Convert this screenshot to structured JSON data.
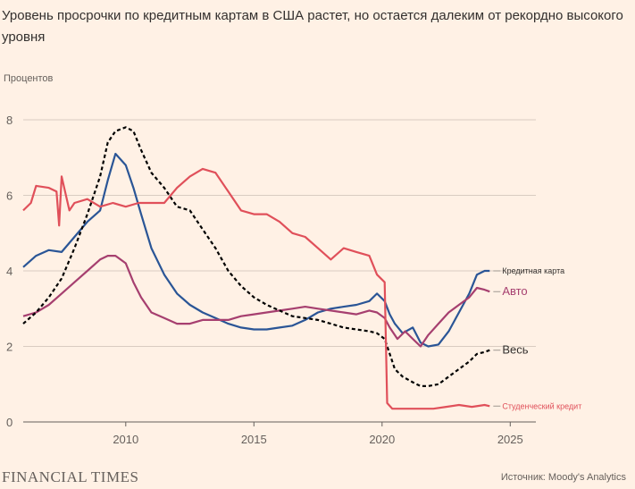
{
  "title": "Уровень просрочки по кредитным картам в США растет, но остается далеким от рекордно высокого уровня",
  "publisher": "FINANCIAL TIMES",
  "source": "Источник: Moody's Analytics",
  "chart_data": {
    "type": "line",
    "title": "Уровень просрочки по кредитным картам в США растет, но остается далеким от рекордно высокого уровня",
    "ylabel": "Процентов",
    "xlabel": "",
    "xlim": [
      2006,
      2026
    ],
    "ylim": [
      0,
      8
    ],
    "xticks": [
      2010,
      2015,
      2020,
      2025
    ],
    "yticks": [
      0,
      2,
      4,
      6,
      8
    ],
    "grid": true,
    "series": [
      {
        "name": "Кредитная карта",
        "color": "#2a5596",
        "dash": "solid",
        "label_size": 9,
        "points": [
          [
            2006.0,
            4.1
          ],
          [
            2006.5,
            4.4
          ],
          [
            2007.0,
            4.55
          ],
          [
            2007.5,
            4.5
          ],
          [
            2008.0,
            4.9
          ],
          [
            2008.5,
            5.3
          ],
          [
            2009.0,
            5.6
          ],
          [
            2009.3,
            6.4
          ],
          [
            2009.6,
            7.1
          ],
          [
            2010.0,
            6.8
          ],
          [
            2010.3,
            6.2
          ],
          [
            2010.6,
            5.5
          ],
          [
            2011.0,
            4.6
          ],
          [
            2011.5,
            3.9
          ],
          [
            2012.0,
            3.4
          ],
          [
            2012.5,
            3.1
          ],
          [
            2013.0,
            2.9
          ],
          [
            2013.5,
            2.75
          ],
          [
            2014.0,
            2.6
          ],
          [
            2014.5,
            2.5
          ],
          [
            2015.0,
            2.45
          ],
          [
            2015.5,
            2.45
          ],
          [
            2016.0,
            2.5
          ],
          [
            2016.5,
            2.55
          ],
          [
            2017.0,
            2.7
          ],
          [
            2017.5,
            2.9
          ],
          [
            2018.0,
            3.0
          ],
          [
            2018.5,
            3.05
          ],
          [
            2019.0,
            3.1
          ],
          [
            2019.5,
            3.2
          ],
          [
            2019.8,
            3.4
          ],
          [
            2020.1,
            3.2
          ],
          [
            2020.3,
            2.85
          ],
          [
            2020.5,
            2.6
          ],
          [
            2020.8,
            2.35
          ],
          [
            2021.2,
            2.5
          ],
          [
            2021.5,
            2.1
          ],
          [
            2021.8,
            2.0
          ],
          [
            2022.2,
            2.05
          ],
          [
            2022.6,
            2.4
          ],
          [
            2023.0,
            2.9
          ],
          [
            2023.4,
            3.4
          ],
          [
            2023.7,
            3.9
          ],
          [
            2024.0,
            4.0
          ],
          [
            2024.2,
            4.0
          ]
        ]
      },
      {
        "name": "Авто",
        "color": "#a63f6f",
        "dash": "solid",
        "label_size": 13,
        "points": [
          [
            2006.0,
            2.8
          ],
          [
            2006.5,
            2.9
          ],
          [
            2007.0,
            3.1
          ],
          [
            2007.5,
            3.4
          ],
          [
            2008.0,
            3.7
          ],
          [
            2008.5,
            4.0
          ],
          [
            2009.0,
            4.3
          ],
          [
            2009.3,
            4.4
          ],
          [
            2009.6,
            4.4
          ],
          [
            2010.0,
            4.2
          ],
          [
            2010.3,
            3.7
          ],
          [
            2010.6,
            3.3
          ],
          [
            2011.0,
            2.9
          ],
          [
            2011.5,
            2.75
          ],
          [
            2012.0,
            2.6
          ],
          [
            2012.5,
            2.6
          ],
          [
            2013.0,
            2.7
          ],
          [
            2013.5,
            2.7
          ],
          [
            2014.0,
            2.7
          ],
          [
            2014.5,
            2.8
          ],
          [
            2015.0,
            2.85
          ],
          [
            2015.5,
            2.9
          ],
          [
            2016.0,
            2.95
          ],
          [
            2016.5,
            3.0
          ],
          [
            2017.0,
            3.05
          ],
          [
            2017.5,
            3.0
          ],
          [
            2018.0,
            2.95
          ],
          [
            2018.5,
            2.9
          ],
          [
            2019.0,
            2.85
          ],
          [
            2019.5,
            2.95
          ],
          [
            2019.8,
            2.9
          ],
          [
            2020.1,
            2.75
          ],
          [
            2020.3,
            2.5
          ],
          [
            2020.6,
            2.2
          ],
          [
            2020.9,
            2.4
          ],
          [
            2021.2,
            2.2
          ],
          [
            2021.5,
            2.0
          ],
          [
            2021.8,
            2.3
          ],
          [
            2022.2,
            2.6
          ],
          [
            2022.6,
            2.9
          ],
          [
            2023.0,
            3.1
          ],
          [
            2023.4,
            3.3
          ],
          [
            2023.7,
            3.55
          ],
          [
            2024.0,
            3.5
          ],
          [
            2024.2,
            3.45
          ]
        ]
      },
      {
        "name": "Весь",
        "color": "#000000",
        "dash": "dashed",
        "label_size": 13,
        "points": [
          [
            2006.0,
            2.6
          ],
          [
            2006.5,
            2.9
          ],
          [
            2007.0,
            3.3
          ],
          [
            2007.5,
            3.8
          ],
          [
            2008.0,
            4.6
          ],
          [
            2008.5,
            5.5
          ],
          [
            2009.0,
            6.5
          ],
          [
            2009.3,
            7.4
          ],
          [
            2009.6,
            7.7
          ],
          [
            2010.0,
            7.8
          ],
          [
            2010.3,
            7.7
          ],
          [
            2010.6,
            7.2
          ],
          [
            2011.0,
            6.6
          ],
          [
            2011.5,
            6.2
          ],
          [
            2012.0,
            5.7
          ],
          [
            2012.5,
            5.6
          ],
          [
            2013.0,
            5.1
          ],
          [
            2013.5,
            4.6
          ],
          [
            2014.0,
            4.0
          ],
          [
            2014.5,
            3.6
          ],
          [
            2015.0,
            3.3
          ],
          [
            2015.5,
            3.1
          ],
          [
            2016.0,
            2.95
          ],
          [
            2016.5,
            2.8
          ],
          [
            2017.0,
            2.75
          ],
          [
            2017.5,
            2.7
          ],
          [
            2018.0,
            2.6
          ],
          [
            2018.5,
            2.5
          ],
          [
            2019.0,
            2.45
          ],
          [
            2019.5,
            2.4
          ],
          [
            2019.8,
            2.35
          ],
          [
            2020.1,
            2.2
          ],
          [
            2020.3,
            1.8
          ],
          [
            2020.5,
            1.4
          ],
          [
            2020.8,
            1.2
          ],
          [
            2021.2,
            1.05
          ],
          [
            2021.5,
            0.95
          ],
          [
            2021.8,
            0.95
          ],
          [
            2022.2,
            1.0
          ],
          [
            2022.6,
            1.2
          ],
          [
            2023.0,
            1.4
          ],
          [
            2023.4,
            1.6
          ],
          [
            2023.7,
            1.8
          ],
          [
            2024.0,
            1.85
          ],
          [
            2024.2,
            1.9
          ]
        ]
      },
      {
        "name": "Студенческий кредит",
        "color": "#e0505a",
        "dash": "solid",
        "label_size": 9,
        "points": [
          [
            2006.0,
            5.6
          ],
          [
            2006.3,
            5.8
          ],
          [
            2006.5,
            6.25
          ],
          [
            2007.0,
            6.2
          ],
          [
            2007.3,
            6.1
          ],
          [
            2007.4,
            5.2
          ],
          [
            2007.5,
            6.5
          ],
          [
            2007.8,
            5.6
          ],
          [
            2008.0,
            5.8
          ],
          [
            2008.5,
            5.9
          ],
          [
            2009.0,
            5.7
          ],
          [
            2009.5,
            5.8
          ],
          [
            2010.0,
            5.7
          ],
          [
            2010.5,
            5.8
          ],
          [
            2011.0,
            5.8
          ],
          [
            2011.5,
            5.8
          ],
          [
            2012.0,
            6.2
          ],
          [
            2012.5,
            6.5
          ],
          [
            2013.0,
            6.7
          ],
          [
            2013.5,
            6.6
          ],
          [
            2014.0,
            6.1
          ],
          [
            2014.5,
            5.6
          ],
          [
            2015.0,
            5.5
          ],
          [
            2015.5,
            5.5
          ],
          [
            2016.0,
            5.3
          ],
          [
            2016.5,
            5.0
          ],
          [
            2017.0,
            4.9
          ],
          [
            2017.5,
            4.6
          ],
          [
            2018.0,
            4.3
          ],
          [
            2018.5,
            4.6
          ],
          [
            2019.0,
            4.5
          ],
          [
            2019.5,
            4.4
          ],
          [
            2019.8,
            3.9
          ],
          [
            2020.1,
            3.7
          ],
          [
            2020.2,
            0.5
          ],
          [
            2020.4,
            0.35
          ],
          [
            2021.0,
            0.35
          ],
          [
            2021.5,
            0.35
          ],
          [
            2022.0,
            0.35
          ],
          [
            2022.5,
            0.4
          ],
          [
            2023.0,
            0.45
          ],
          [
            2023.5,
            0.4
          ],
          [
            2024.0,
            0.45
          ],
          [
            2024.2,
            0.42
          ]
        ]
      }
    ]
  }
}
